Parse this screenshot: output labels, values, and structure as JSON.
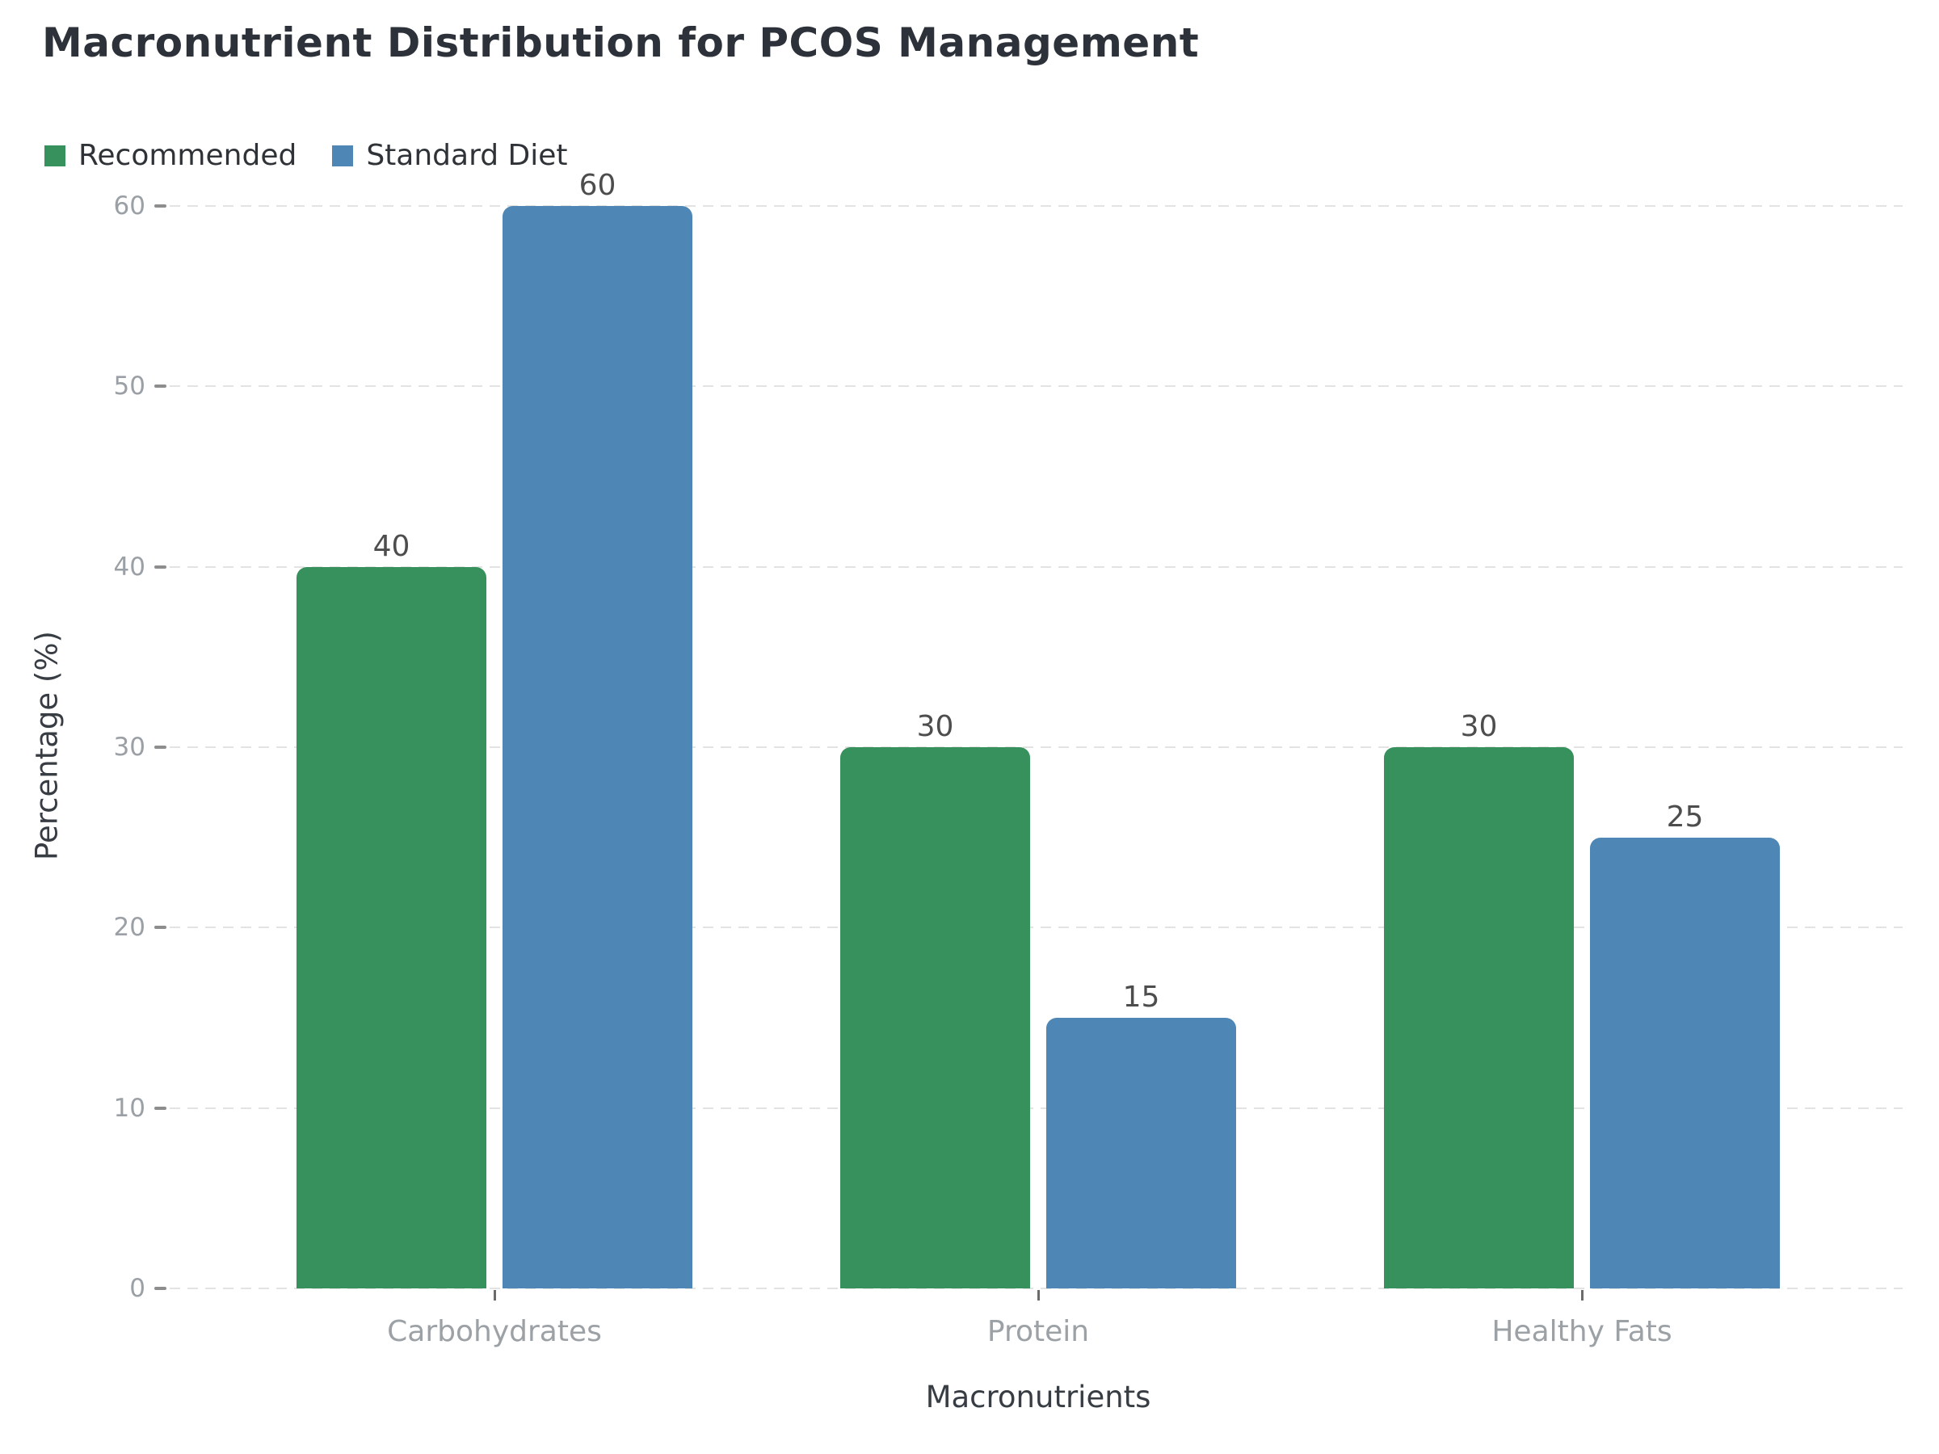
{
  "chart_data": {
    "type": "bar",
    "title": "Macronutrient Distribution for PCOS Management",
    "categories": [
      "Carbohydrates",
      "Protein",
      "Healthy Fats"
    ],
    "series": [
      {
        "name": "Recommended",
        "color": "#36915c",
        "values": [
          40,
          30,
          30
        ]
      },
      {
        "name": "Standard Diet",
        "color": "#4e86b5",
        "values": [
          60,
          15,
          25
        ]
      }
    ],
    "xlabel": "Macronutrients",
    "ylabel": "Percentage (%)",
    "ylim": [
      0,
      60
    ],
    "yticks": [
      0,
      10,
      20,
      30,
      40,
      50,
      60
    ],
    "grid": true,
    "grid_style": "dashed-horizontal",
    "grid_color": "#e3e3e3",
    "legend_position": "top-left",
    "bar_value_labels": true,
    "title_color": "#2c313a",
    "tick_label_color": "#9aa0a5",
    "category_label_color": "#9ca1a6",
    "value_label_color": "#4d4d4d"
  }
}
